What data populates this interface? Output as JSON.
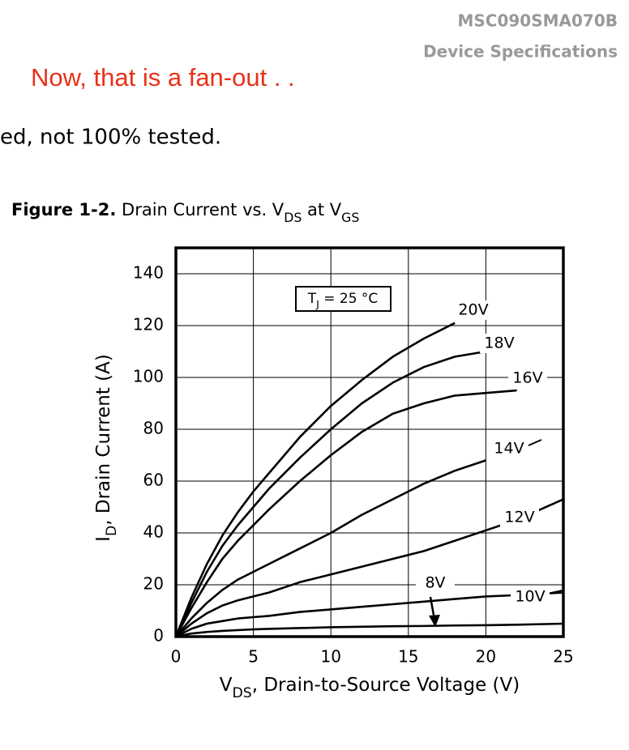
{
  "header": {
    "part_number": "MSC090SMA070B",
    "section": "Device Specifications"
  },
  "annotation": "Now, that is a fan-out . .",
  "body_text": "ed, not 100% tested.",
  "figure": {
    "number": "Figure 1-2.",
    "title": [
      "Drain Current vs. V",
      "DS",
      " at V",
      "GS"
    ]
  },
  "chart_data": {
    "type": "line",
    "xlabel": [
      "V",
      "DS",
      ", Drain-to-Source Voltage (V)"
    ],
    "ylabel": [
      "I",
      "D",
      ", Drain Current (A)"
    ],
    "annotation": [
      "T",
      "J",
      " = 25 °C"
    ],
    "x": [
      0,
      1,
      2,
      3,
      4,
      5,
      6,
      8,
      10,
      12,
      14,
      16,
      18,
      20,
      22,
      25
    ],
    "series": [
      {
        "name": "20V",
        "color": "#000000",
        "values": [
          0,
          15,
          28,
          39,
          48,
          56,
          63,
          77,
          89,
          99,
          108,
          115,
          121,
          null,
          null,
          null
        ]
      },
      {
        "name": "18V",
        "color": "#000000",
        "values": [
          0,
          13,
          25,
          35,
          43,
          50,
          57,
          69,
          80,
          90,
          98,
          104,
          108,
          110,
          null,
          null
        ]
      },
      {
        "name": "16V",
        "color": "#000000",
        "values": [
          0,
          11,
          21,
          30,
          37,
          43,
          49,
          60,
          70,
          79,
          86,
          90,
          93,
          94,
          95,
          null
        ]
      },
      {
        "name": "14V",
        "color": "#000000",
        "values": [
          0,
          7,
          13,
          18,
          22,
          25,
          28,
          34,
          40,
          47,
          53,
          59,
          64,
          68,
          null,
          null
        ]
      },
      {
        "name": "12V",
        "color": "#000000",
        "values": [
          0,
          5,
          9,
          12,
          14,
          15.5,
          17,
          21,
          24,
          27,
          30,
          33,
          37,
          41,
          45,
          53
        ]
      },
      {
        "name": "10V",
        "color": "#000000",
        "values": [
          0,
          3,
          5,
          6,
          7,
          7.5,
          8,
          9.5,
          10.5,
          11.5,
          12.5,
          13.5,
          14.5,
          15.5,
          16,
          17
        ]
      },
      {
        "name": "8V",
        "color": "#000000",
        "values": [
          0,
          1.2,
          1.8,
          2.2,
          2.5,
          2.8,
          3,
          3.3,
          3.6,
          3.8,
          4,
          4.1,
          4.3,
          4.4,
          4.6,
          5
        ]
      }
    ],
    "xlim": [
      0,
      25
    ],
    "ylim": [
      0,
      150
    ],
    "xticks": [
      0,
      5,
      10,
      15,
      20,
      25
    ],
    "yticks": [
      0,
      20,
      40,
      60,
      80,
      100,
      120,
      140
    ],
    "grid": true
  }
}
